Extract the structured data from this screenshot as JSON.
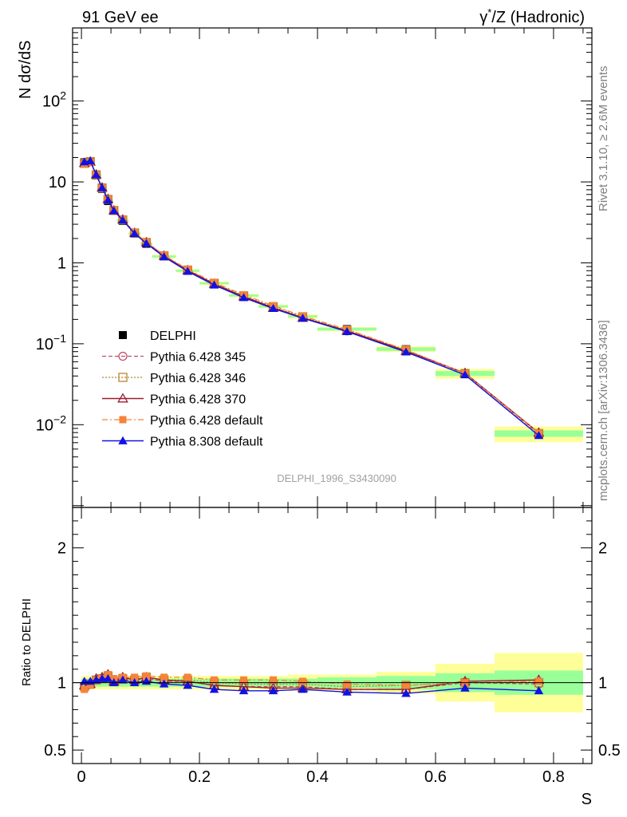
{
  "header": {
    "left_title": "91 GeV ee",
    "right_title_gamma": "γ",
    "right_title_rest": "/Z (Hadronic)"
  },
  "side": {
    "rivet_text": "Rivet 3.1.10, ≥ 2.6M events",
    "mcplots_text": "mcplots.cern.ch [arXiv:1306.3436]"
  },
  "analysis_id": "DELPHI_1996_S3430090",
  "colors": {
    "DELPHI": "#000000",
    "Pythia 6.428 345": "#c0506a",
    "Pythia 6.428 346": "#b8862e",
    "Pythia 6.428 370": "#9b1c2e",
    "Pythia 6.428 default": "#f5843a",
    "Pythia 8.308 default": "#1212e0",
    "band_inner": "#99ff99",
    "band_outer": "#ffff99"
  },
  "chart_data": {
    "type": "line",
    "top_panel": {
      "ylabel": "N dσ/dS",
      "yscale": "log",
      "ylim": [
        0.00095,
        800
      ],
      "yticks_major": [
        {
          "v": 0.01,
          "base": "10",
          "exp": "−2"
        },
        {
          "v": 0.1,
          "base": "10",
          "exp": "−1"
        },
        {
          "v": 1,
          "base": "1",
          "exp": ""
        },
        {
          "v": 10,
          "base": "10",
          "exp": ""
        },
        {
          "v": 100,
          "base": "10",
          "exp": "2"
        }
      ]
    },
    "ratio_panel": {
      "ylabel": "Ratio to DELPHI",
      "ylim": [
        0.4,
        2.3
      ],
      "yticks": [
        0.5,
        1,
        2
      ],
      "ytick_labels": [
        "0.5",
        "1",
        "2"
      ]
    },
    "xlabel": "S",
    "xlim": [
      -0.015,
      0.865
    ],
    "xticks": [
      0,
      0.2,
      0.4,
      0.6,
      0.8
    ],
    "xtick_labels": [
      "0",
      "0.2",
      "0.4",
      "0.6",
      "0.8"
    ],
    "x": [
      0.005,
      0.015,
      0.025,
      0.035,
      0.045,
      0.055,
      0.07,
      0.09,
      0.11,
      0.14,
      0.18,
      0.225,
      0.275,
      0.325,
      0.375,
      0.45,
      0.55,
      0.65,
      0.775
    ],
    "bin_edges": [
      0,
      0.01,
      0.02,
      0.03,
      0.04,
      0.05,
      0.06,
      0.08,
      0.1,
      0.12,
      0.16,
      0.2,
      0.25,
      0.3,
      0.35,
      0.4,
      0.5,
      0.6,
      0.7,
      0.85
    ],
    "data_values": [
      17.5,
      18.0,
      12.0,
      8.2,
      5.8,
      4.4,
      3.3,
      2.3,
      1.72,
      1.2,
      0.8,
      0.56,
      0.395,
      0.29,
      0.218,
      0.152,
      0.086,
      0.043,
      0.0078
    ],
    "band_inner": [
      0.03,
      0.03,
      0.03,
      0.03,
      0.03,
      0.03,
      0.03,
      0.03,
      0.03,
      0.03,
      0.03,
      0.03,
      0.03,
      0.03,
      0.03,
      0.04,
      0.05,
      0.07,
      0.09
    ],
    "band_outer": [
      0.05,
      0.05,
      0.05,
      0.05,
      0.05,
      0.05,
      0.05,
      0.05,
      0.05,
      0.05,
      0.05,
      0.05,
      0.05,
      0.05,
      0.06,
      0.06,
      0.08,
      0.14,
      0.22
    ],
    "series": [
      {
        "name": "DELPHI",
        "ratio": [
          1,
          1,
          1,
          1,
          1,
          1,
          1,
          1,
          1,
          1,
          1,
          1,
          1,
          1,
          1,
          1,
          1,
          1,
          1
        ]
      },
      {
        "name": "Pythia 6.428 345",
        "ratio": [
          0.97,
          0.99,
          1.02,
          1.03,
          1.05,
          1.01,
          1.03,
          1.02,
          1.03,
          1.01,
          1.01,
          0.98,
          0.97,
          0.97,
          0.97,
          0.95,
          0.95,
          1.0,
          0.99
        ]
      },
      {
        "name": "Pythia 6.428 346",
        "ratio": [
          0.97,
          0.99,
          1.02,
          1.03,
          1.05,
          1.01,
          1.03,
          1.02,
          1.04,
          1.02,
          1.02,
          1.0,
          0.99,
          0.99,
          0.99,
          0.97,
          0.98,
          1.0,
          1.0
        ]
      },
      {
        "name": "Pythia 6.428 370",
        "ratio": [
          0.98,
          0.99,
          1.03,
          1.04,
          1.06,
          1.01,
          1.04,
          1.02,
          1.04,
          1.02,
          1.01,
          0.98,
          0.97,
          0.96,
          0.96,
          0.95,
          0.95,
          1.01,
          1.02
        ]
      },
      {
        "name": "Pythia 6.428 default",
        "ratio": [
          0.95,
          0.98,
          1.02,
          1.03,
          1.06,
          1.03,
          1.04,
          1.04,
          1.05,
          1.04,
          1.04,
          1.02,
          1.02,
          1.02,
          1.01,
          0.99,
          0.98,
          1.0,
          1.01
        ]
      },
      {
        "name": "Pythia 8.308 default",
        "ratio": [
          1.01,
          1.01,
          1.02,
          1.03,
          1.03,
          1.0,
          1.02,
          1.0,
          1.01,
          0.99,
          0.98,
          0.95,
          0.94,
          0.94,
          0.95,
          0.93,
          0.92,
          0.96,
          0.94
        ]
      }
    ],
    "legend_position": "lower-left",
    "grid": false
  }
}
